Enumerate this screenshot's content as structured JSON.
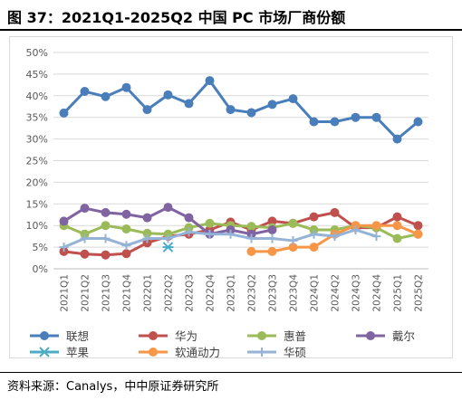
{
  "title": "图 37：2021Q1-2025Q2 中国 PC 市场厂商份额",
  "source": "资料来源：Canalys，中中原证券研究所",
  "chart_data": {
    "type": "line",
    "x": [
      "2021Q1",
      "2021Q2",
      "2021Q3",
      "2021Q4",
      "2022Q1",
      "2022Q2",
      "2022Q3",
      "2022Q4",
      "2023Q1",
      "2023Q2",
      "2023Q3",
      "2023Q4",
      "2024Q1",
      "2024Q2",
      "2024Q3",
      "2024Q4",
      "2025Q1",
      "2025Q2"
    ],
    "ylim": [
      0,
      50
    ],
    "yticks": [
      "0%",
      "5%",
      "10%",
      "15%",
      "20%",
      "25%",
      "30%",
      "35%",
      "40%",
      "45%",
      "50%"
    ],
    "grid": "horizontal",
    "legend_position": "bottom",
    "series": [
      {
        "name": "联想",
        "color": "#4a7ebb",
        "marker": "circle",
        "values": [
          36.0,
          41.0,
          39.8,
          41.9,
          36.8,
          40.2,
          38.2,
          43.5,
          36.8,
          36.1,
          38.0,
          39.3,
          34.0,
          34.0,
          35.0,
          35.0,
          30.0,
          34.0
        ]
      },
      {
        "name": "华为",
        "color": "#c0504d",
        "marker": "circle",
        "values": [
          4.0,
          3.4,
          3.2,
          3.5,
          6.0,
          7.5,
          8.0,
          9.0,
          10.8,
          9.0,
          11.0,
          10.5,
          12.0,
          13.0,
          9.5,
          9.5,
          12.0,
          10.0
        ]
      },
      {
        "name": "惠普",
        "color": "#9bbb59",
        "marker": "circle",
        "values": [
          10.0,
          8.0,
          10.0,
          9.2,
          8.2,
          8.0,
          9.5,
          10.5,
          10.0,
          9.8,
          9.5,
          10.5,
          9.0,
          9.0,
          10.0,
          9.5,
          7.0,
          8.0
        ]
      },
      {
        "name": "戴尔",
        "color": "#8064a2",
        "marker": "circle",
        "values": [
          11.0,
          14.0,
          13.0,
          12.6,
          11.8,
          14.2,
          11.8,
          8.0,
          9.0,
          8.0,
          9.0,
          null,
          null,
          null,
          null,
          null,
          null,
          null
        ]
      },
      {
        "name": "苹果",
        "color": "#4bacc6",
        "marker": "x",
        "values": [
          null,
          null,
          null,
          null,
          null,
          5.0,
          null,
          null,
          null,
          null,
          null,
          null,
          null,
          null,
          null,
          null,
          null,
          null
        ]
      },
      {
        "name": "软通动力",
        "color": "#f79646",
        "marker": "circle",
        "values": [
          null,
          null,
          null,
          null,
          null,
          null,
          null,
          null,
          null,
          4.0,
          4.0,
          5.0,
          5.0,
          8.0,
          10.0,
          10.0,
          10.0,
          8.0
        ]
      },
      {
        "name": "华硕",
        "color": "#95b3d7",
        "marker": "plus",
        "values": [
          5.0,
          7.0,
          7.0,
          5.4,
          7.0,
          7.0,
          8.5,
          8.0,
          8.0,
          7.0,
          7.0,
          6.5,
          8.0,
          7.5,
          9.0,
          7.5,
          null,
          null
        ]
      }
    ]
  }
}
